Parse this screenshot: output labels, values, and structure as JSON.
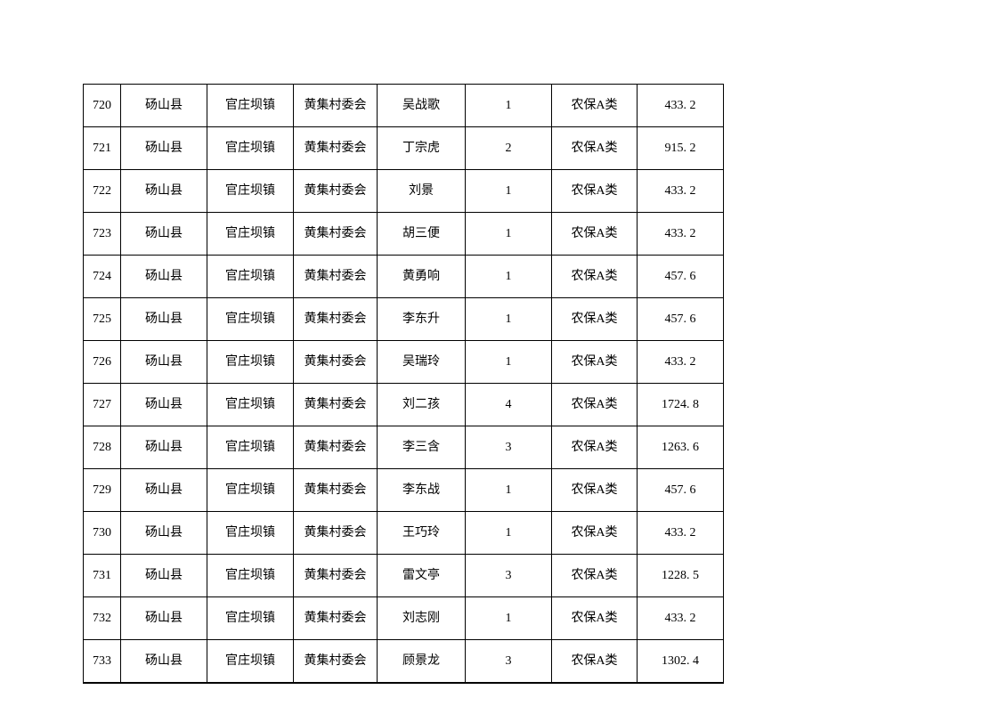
{
  "document": {
    "background_color": "#ffffff",
    "grid_line_color": "#000000",
    "text_color": "#000000"
  },
  "table": {
    "column_keys": [
      "row_no",
      "county",
      "town",
      "village",
      "person_name",
      "headcount",
      "category",
      "amount"
    ],
    "rows": [
      {
        "row_no": "720",
        "county": "砀山县",
        "town": "官庄坝镇",
        "village": "黄集村委会",
        "person_name": "吴战歌",
        "headcount": "1",
        "category": "农保A类",
        "amount": "433. 2"
      },
      {
        "row_no": "721",
        "county": "砀山县",
        "town": "官庄坝镇",
        "village": "黄集村委会",
        "person_name": "丁宗虎",
        "headcount": "2",
        "category": "农保A类",
        "amount": "915. 2"
      },
      {
        "row_no": "722",
        "county": "砀山县",
        "town": "官庄坝镇",
        "village": "黄集村委会",
        "person_name": "刘景",
        "headcount": "1",
        "category": "农保A类",
        "amount": "433. 2"
      },
      {
        "row_no": "723",
        "county": "砀山县",
        "town": "官庄坝镇",
        "village": "黄集村委会",
        "person_name": "胡三便",
        "headcount": "1",
        "category": "农保A类",
        "amount": "433. 2"
      },
      {
        "row_no": "724",
        "county": "砀山县",
        "town": "官庄坝镇",
        "village": "黄集村委会",
        "person_name": "黄勇响",
        "headcount": "1",
        "category": "农保A类",
        "amount": "457. 6"
      },
      {
        "row_no": "725",
        "county": "砀山县",
        "town": "官庄坝镇",
        "village": "黄集村委会",
        "person_name": "李东升",
        "headcount": "1",
        "category": "农保A类",
        "amount": "457. 6"
      },
      {
        "row_no": "726",
        "county": "砀山县",
        "town": "官庄坝镇",
        "village": "黄集村委会",
        "person_name": "吴瑞玲",
        "headcount": "1",
        "category": "农保A类",
        "amount": "433. 2"
      },
      {
        "row_no": "727",
        "county": "砀山县",
        "town": "官庄坝镇",
        "village": "黄集村委会",
        "person_name": "刘二孩",
        "headcount": "4",
        "category": "农保A类",
        "amount": "1724. 8"
      },
      {
        "row_no": "728",
        "county": "砀山县",
        "town": "官庄坝镇",
        "village": "黄集村委会",
        "person_name": "李三含",
        "headcount": "3",
        "category": "农保A类",
        "amount": "1263. 6"
      },
      {
        "row_no": "729",
        "county": "砀山县",
        "town": "官庄坝镇",
        "village": "黄集村委会",
        "person_name": "李东战",
        "headcount": "1",
        "category": "农保A类",
        "amount": "457. 6"
      },
      {
        "row_no": "730",
        "county": "砀山县",
        "town": "官庄坝镇",
        "village": "黄集村委会",
        "person_name": "王巧玲",
        "headcount": "1",
        "category": "农保A类",
        "amount": "433. 2"
      },
      {
        "row_no": "731",
        "county": "砀山县",
        "town": "官庄坝镇",
        "village": "黄集村委会",
        "person_name": "雷文亭",
        "headcount": "3",
        "category": "农保A类",
        "amount": "1228. 5"
      },
      {
        "row_no": "732",
        "county": "砀山县",
        "town": "官庄坝镇",
        "village": "黄集村委会",
        "person_name": "刘志刚",
        "headcount": "1",
        "category": "农保A类",
        "amount": "433. 2"
      },
      {
        "row_no": "733",
        "county": "砀山县",
        "town": "官庄坝镇",
        "village": "黄集村委会",
        "person_name": "顾景龙",
        "headcount": "3",
        "category": "农保A类",
        "amount": "1302. 4"
      }
    ]
  }
}
